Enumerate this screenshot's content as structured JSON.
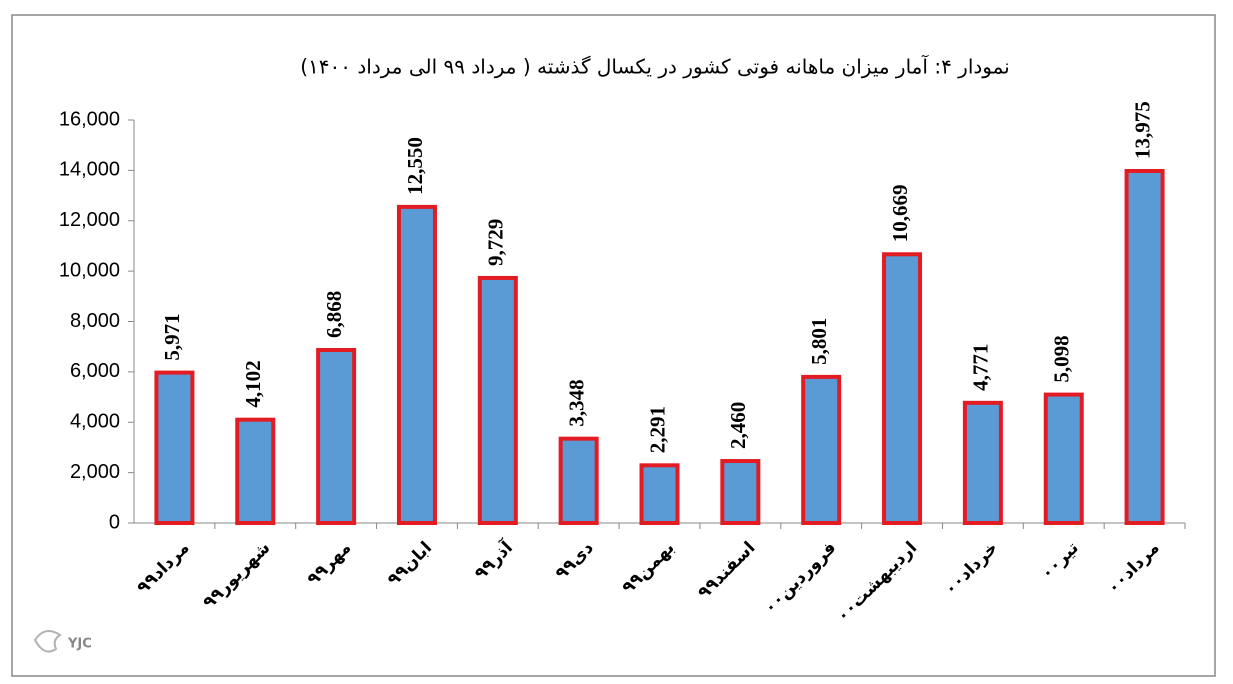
{
  "chart_data": {
    "type": "bar",
    "title": "نمودار ۴: آمار میزان ماهانه فوتی کشور در یکسال گذشته ( مرداد ۹۹ الی مرداد ۱۴۰۰)",
    "categories": [
      "مرداد۹۹",
      "شهریور۹۹",
      "مهر۹۹",
      "ابان۹۹",
      "آذر۹۹",
      "دی۹۹",
      "بهمن۹۹",
      "اسفند۹۹",
      "فروردین۰۰",
      "اردیبهشت۰۰",
      "خرداد۰۰",
      "تیر۰۰",
      "مرداد۰۰"
    ],
    "values": [
      5971,
      4102,
      6868,
      12550,
      9729,
      3348,
      2291,
      2460,
      5801,
      10669,
      4771,
      5098,
      13975
    ],
    "value_labels": [
      "5,971",
      "4,102",
      "6,868",
      "12,550",
      "9,729",
      "3,348",
      "2,291",
      "2,460",
      "5,801",
      "10,669",
      "4,771",
      "5,098",
      "13,975"
    ],
    "color": "#5b9bd5",
    "edge_color": "#e31b23",
    "ylim": [
      0,
      16000
    ],
    "yticks": [
      0,
      {
        "value": 2000,
        "label": "2,000"
      },
      {
        "value": 4000,
        "label": "4,000"
      },
      {
        "value": 6000,
        "label": "6,000"
      },
      {
        "value": 8000,
        "label": "8,000"
      },
      {
        "value": 10000,
        "label": "10,000"
      },
      {
        "value": 12000,
        "label": "12,000"
      },
      {
        "value": 14000,
        "label": "14,000"
      },
      {
        "value": 16000,
        "label": "16,000"
      }
    ],
    "grid": false,
    "watermark": "YJC"
  }
}
